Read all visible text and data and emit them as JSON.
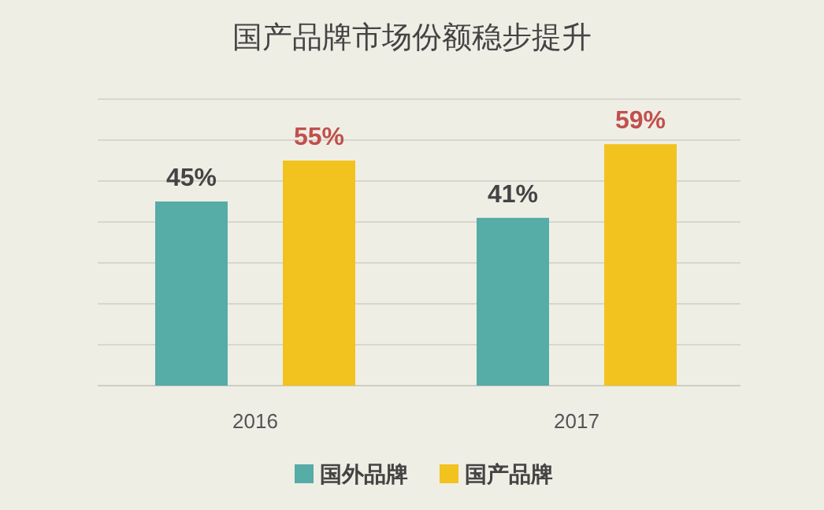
{
  "chart_data": {
    "type": "bar",
    "title": "国产品牌市场份额稳步提升",
    "categories": [
      "2016",
      "2017"
    ],
    "series": [
      {
        "name": "国外品牌",
        "color": "#56aca6",
        "values": [
          45,
          41
        ],
        "value_labels": [
          "45%",
          "41%"
        ]
      },
      {
        "name": "国产品牌",
        "color": "#f2c21f",
        "values": [
          55,
          59
        ],
        "value_labels": [
          "55%",
          "59%"
        ]
      }
    ],
    "ylim": [
      0,
      70
    ],
    "yticks": [
      {
        "value": 0,
        "label": null
      },
      {
        "value": 10,
        "label": null
      },
      {
        "value": 20,
        "label": null
      },
      {
        "value": 30,
        "label": null
      },
      {
        "value": 40,
        "label": null
      },
      {
        "value": 50,
        "label": null
      },
      {
        "value": 60,
        "label": null
      },
      {
        "value": 70,
        "label": null
      }
    ],
    "grid": "y",
    "legend": "bottom"
  }
}
